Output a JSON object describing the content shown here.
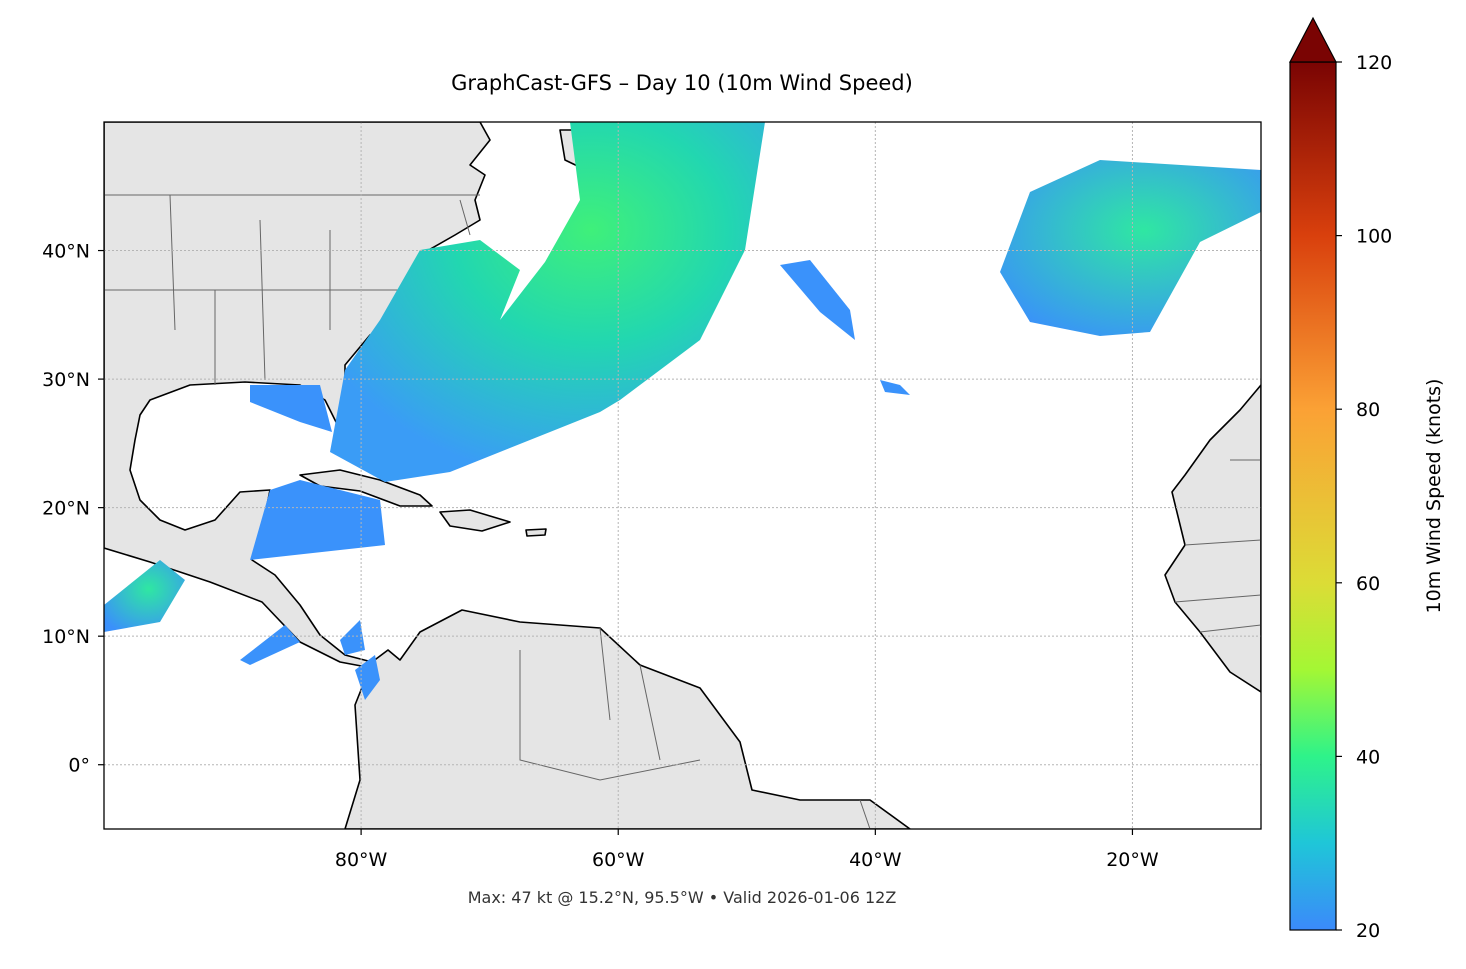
{
  "title": "GraphCast-GFS – Day 10 (10m Wind Speed)",
  "map": {
    "xlim": [
      -100,
      -10
    ],
    "ylim": [
      -5,
      50
    ],
    "xticks": [
      {
        "value": -80,
        "label": "80°W"
      },
      {
        "value": -60,
        "label": "60°W"
      },
      {
        "value": -40,
        "label": "40°W"
      },
      {
        "value": -20,
        "label": "20°W"
      }
    ],
    "yticks": [
      {
        "value": 0,
        "label": "0°"
      },
      {
        "value": 10,
        "label": "10°N"
      },
      {
        "value": 20,
        "label": "20°N"
      },
      {
        "value": 30,
        "label": "30°N"
      },
      {
        "value": 40,
        "label": "40°N"
      }
    ],
    "grid": true
  },
  "colorbar": {
    "label": "10m Wind Speed (knots)",
    "lim": [
      20,
      120
    ],
    "ticks": [
      20,
      40,
      60,
      80,
      100,
      120
    ]
  },
  "footer": "Max: 47 kt @ 15.2°N, 95.5°W • Valid 2026-01-06 12Z"
}
